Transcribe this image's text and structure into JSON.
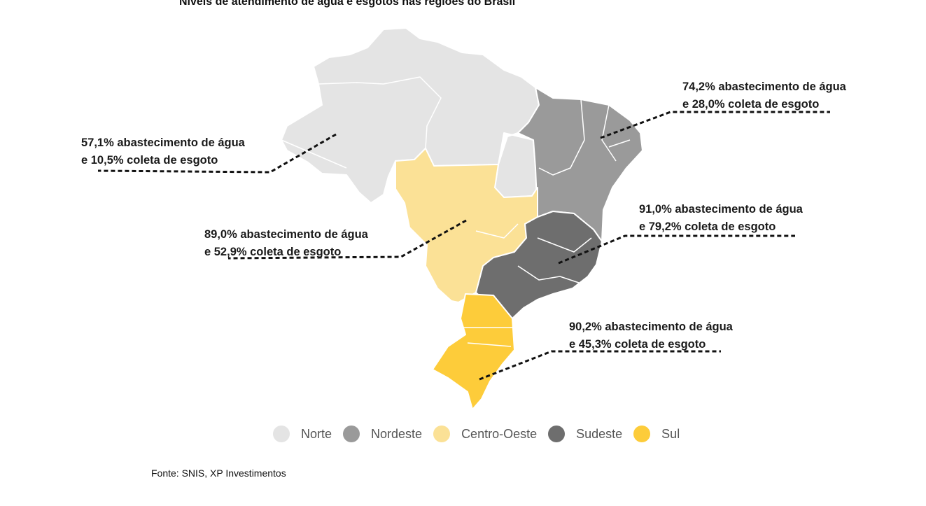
{
  "title": "Níveis de atendimento de água e esgotos nas regiões do Brasil",
  "regions": [
    {
      "id": "norte",
      "name": "Norte",
      "color": "#e4e4e4",
      "line1": "57,1% abastecimento de água",
      "line2": "e 10,5%  coleta de esgoto"
    },
    {
      "id": "nordeste",
      "name": "Nordeste",
      "color": "#9a9a9a",
      "line1": "74,2% abastecimento de água",
      "line2": "e 28,0% coleta de esgoto"
    },
    {
      "id": "centro-oeste",
      "name": "Centro-Oeste",
      "color": "#fbe196",
      "line1": "89,0% abastecimento de água",
      "line2": "e 52,9%  coleta de esgoto"
    },
    {
      "id": "sudeste",
      "name": "Sudeste",
      "color": "#6e6e6e",
      "line1": "91,0%  abastecimento de água",
      "line2": "e 79,2% coleta de esgoto"
    },
    {
      "id": "sul",
      "name": "Sul",
      "color": "#fdcc3a",
      "line1": "90,2% abastecimento de água",
      "line2": "e 45,3%  coleta de esgoto"
    }
  ],
  "source": "Fonte: SNIS, XP Investimentos"
}
